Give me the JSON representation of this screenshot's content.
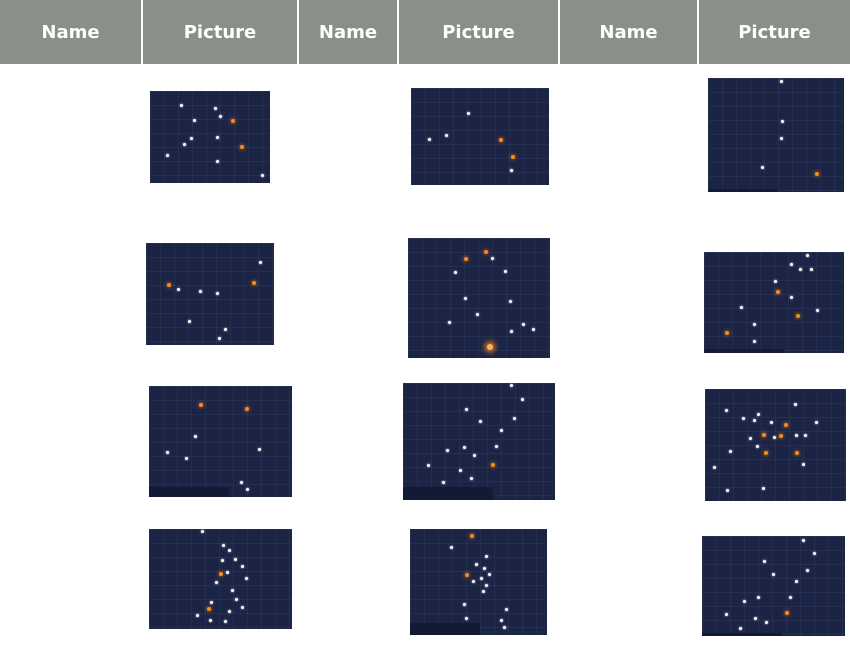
{
  "table": {
    "headers": [
      "Name",
      "Picture",
      "Name",
      "Picture",
      "Name",
      "Picture"
    ]
  },
  "pictures": [
    {
      "stars": "star-field"
    },
    {
      "stars": "star-field"
    },
    {
      "stars": "star-field"
    },
    {
      "stars": "star-field"
    },
    {
      "stars": "star-field"
    },
    {
      "stars": "star-field"
    },
    {
      "stars": "star-field"
    },
    {
      "stars": "star-field"
    },
    {
      "stars": "star-field"
    },
    {
      "stars": "star-field"
    },
    {
      "stars": "star-field"
    },
    {
      "stars": "star-field"
    }
  ],
  "colors": {
    "header_bg": "#8a8f89",
    "header_text": "#ffffff",
    "sky": "#1b2444",
    "star_white": "#ffffff",
    "star_orange": "#ff8a1c"
  }
}
